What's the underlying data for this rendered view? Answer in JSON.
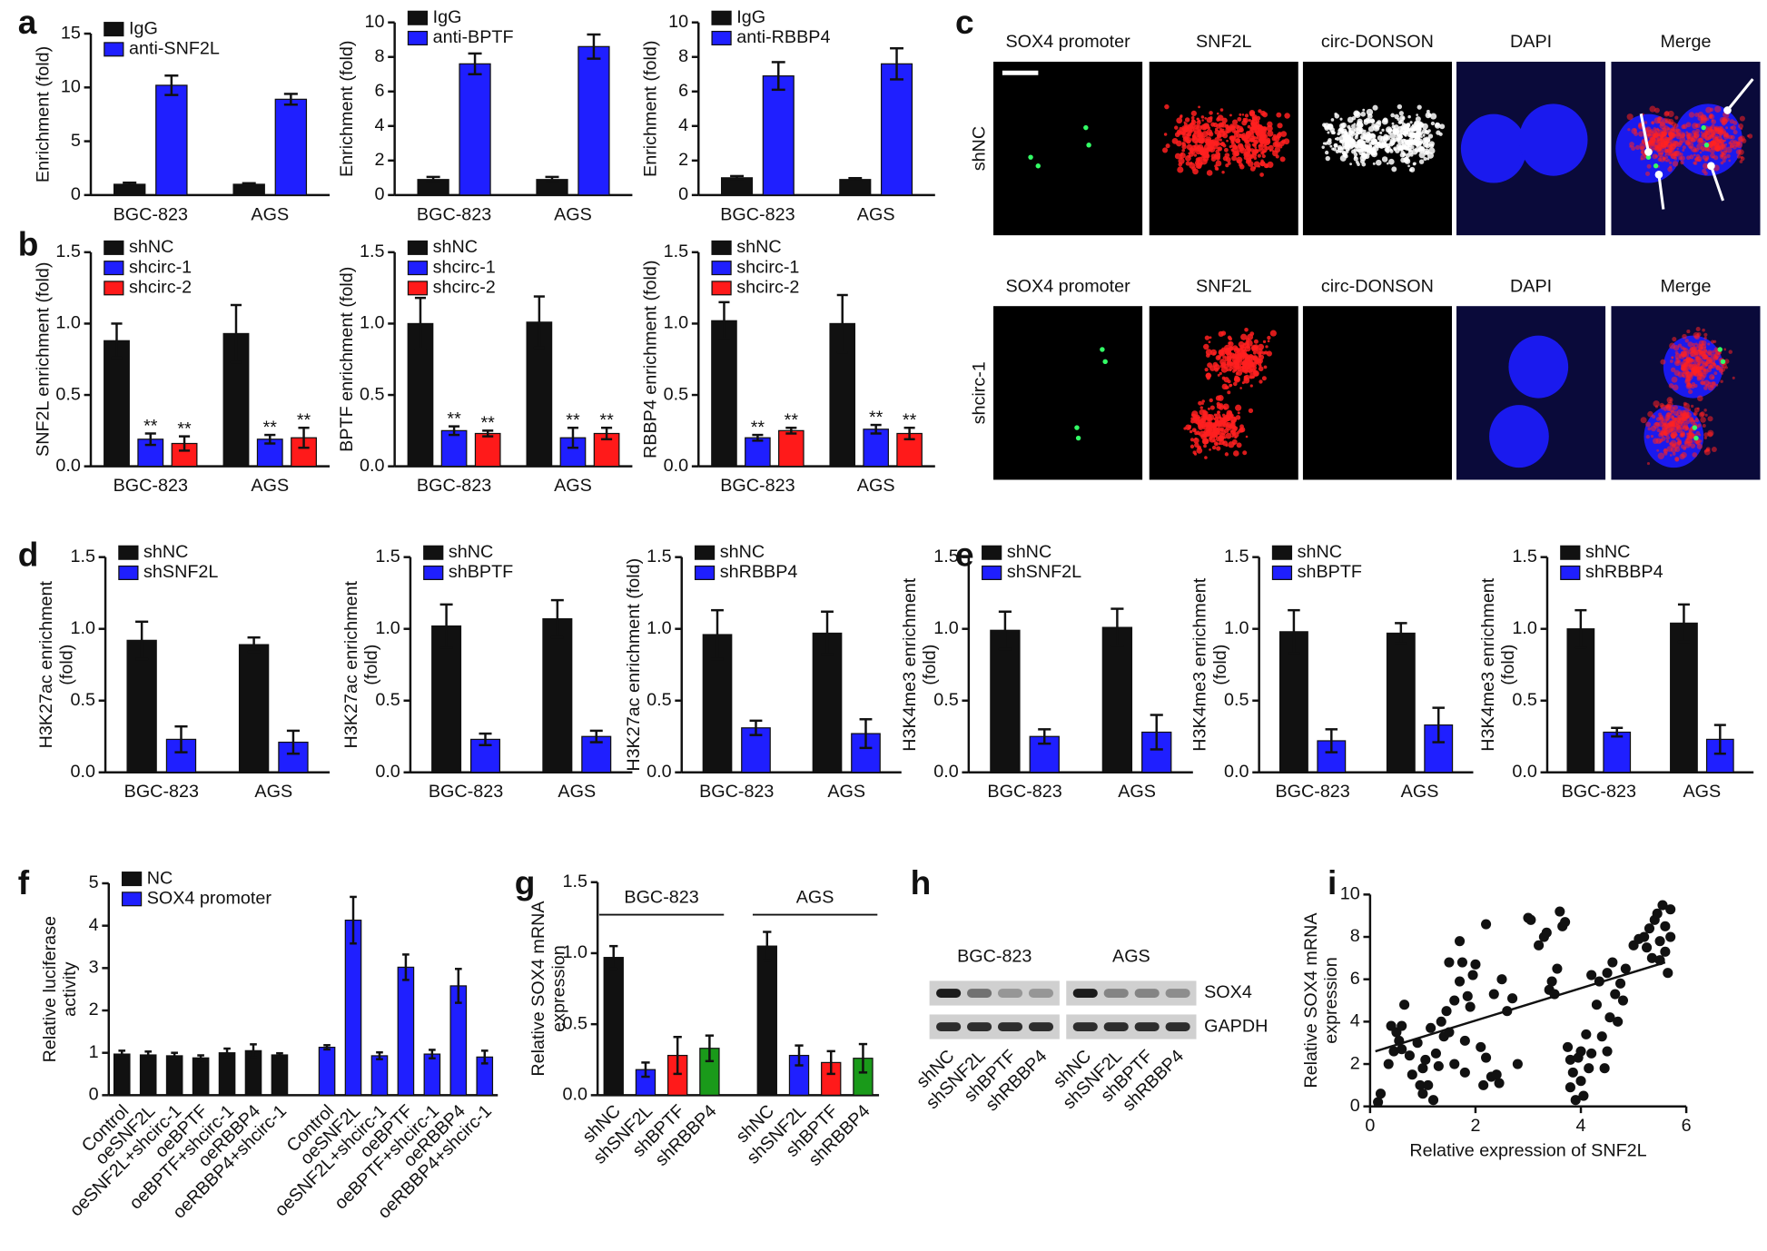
{
  "panel_labels": [
    "a",
    "b",
    "c",
    "d",
    "e",
    "f",
    "g",
    "h",
    "i"
  ],
  "microscopy": {
    "columns": [
      "SOX4 promoter",
      "SNF2L",
      "circ-DONSON",
      "DAPI",
      "Merge"
    ],
    "rows": [
      "shNC",
      "shcirc-1"
    ]
  },
  "blot": {
    "groups": [
      "BGC-823",
      "AGS"
    ],
    "bands": [
      "SOX4",
      "GAPDH"
    ],
    "lanes": [
      "shNC",
      "shSNF2L",
      "shBPTF",
      "shRBBP4"
    ]
  },
  "chart_data": [
    {
      "type": "bar",
      "ylabel": "Enrichment (fold)",
      "categories": [
        "BGC-823",
        "AGS"
      ],
      "ylim": [
        0,
        15
      ],
      "yticks": [
        0,
        5,
        10,
        15
      ],
      "legend": "upper left",
      "series": [
        {
          "name": "IgG",
          "color": "#111111",
          "values": [
            1.0,
            1.0
          ],
          "errors": [
            0.15,
            0.1
          ]
        },
        {
          "name": "anti-SNF2L",
          "color": "#1f1fff",
          "values": [
            10.2,
            8.9
          ],
          "errors": [
            0.9,
            0.5
          ]
        }
      ]
    },
    {
      "type": "bar",
      "ylabel": "Enrichment (fold)",
      "categories": [
        "BGC-823",
        "AGS"
      ],
      "ylim": [
        0,
        10
      ],
      "yticks": [
        0,
        2,
        4,
        6,
        8,
        10
      ],
      "legend": "upper left",
      "series": [
        {
          "name": "IgG",
          "color": "#111111",
          "values": [
            0.9,
            0.9
          ],
          "errors": [
            0.15,
            0.15
          ]
        },
        {
          "name": "anti-BPTF",
          "color": "#1f1fff",
          "values": [
            7.6,
            8.6
          ],
          "errors": [
            0.6,
            0.7
          ]
        }
      ]
    },
    {
      "type": "bar",
      "ylabel": "Enrichment (fold)",
      "categories": [
        "BGC-823",
        "AGS"
      ],
      "ylim": [
        0,
        10
      ],
      "yticks": [
        0,
        2,
        4,
        6,
        8,
        10
      ],
      "legend": "upper left",
      "series": [
        {
          "name": "IgG",
          "color": "#111111",
          "values": [
            1.0,
            0.9
          ],
          "errors": [
            0.1,
            0.08
          ]
        },
        {
          "name": "anti-RBBP4",
          "color": "#1f1fff",
          "values": [
            6.9,
            7.6
          ],
          "errors": [
            0.8,
            0.9
          ]
        }
      ]
    },
    {
      "type": "bar",
      "ylabel": "SNF2L enrichment (fold)",
      "categories": [
        "BGC-823",
        "AGS"
      ],
      "ylim": [
        0,
        1.5
      ],
      "yticks": [
        {
          "value": 0,
          "label": "0.0"
        },
        0.5,
        {
          "value": 1,
          "label": "1.0"
        },
        1.5
      ],
      "legend": "upper left",
      "series": [
        {
          "name": "shNC",
          "color": "#111111",
          "values": [
            0.88,
            0.93
          ],
          "errors": [
            0.12,
            0.2
          ]
        },
        {
          "name": "shcirc-1",
          "color": "#1f1fff",
          "values": [
            0.19,
            0.19
          ],
          "errors": [
            0.04,
            0.03
          ],
          "annotations": [
            "**",
            "**"
          ]
        },
        {
          "name": "shcirc-2",
          "color": "#ff1a1a",
          "values": [
            0.16,
            0.2
          ],
          "errors": [
            0.05,
            0.07
          ],
          "annotations": [
            "**",
            "**"
          ]
        }
      ]
    },
    {
      "type": "bar",
      "ylabel": "BPTF enrichment (fold)",
      "categories": [
        "BGC-823",
        "AGS"
      ],
      "ylim": [
        0,
        1.5
      ],
      "yticks": [
        {
          "value": 0,
          "label": "0.0"
        },
        0.5,
        {
          "value": 1,
          "label": "1.0"
        },
        1.5
      ],
      "legend": "upper left",
      "series": [
        {
          "name": "shNC",
          "color": "#111111",
          "values": [
            1.0,
            1.01
          ],
          "errors": [
            0.18,
            0.18
          ]
        },
        {
          "name": "shcirc-1",
          "color": "#1f1fff",
          "values": [
            0.25,
            0.2
          ],
          "errors": [
            0.03,
            0.07
          ],
          "annotations": [
            "**",
            "**"
          ]
        },
        {
          "name": "shcirc-2",
          "color": "#ff1a1a",
          "values": [
            0.23,
            0.23
          ],
          "errors": [
            0.02,
            0.04
          ],
          "annotations": [
            "**",
            "**"
          ]
        }
      ]
    },
    {
      "type": "bar",
      "ylabel": "RBBP4 enrichment (fold)",
      "categories": [
        "BGC-823",
        "AGS"
      ],
      "ylim": [
        0,
        1.5
      ],
      "yticks": [
        {
          "value": 0,
          "label": "0.0"
        },
        0.5,
        {
          "value": 1,
          "label": "1.0"
        },
        1.5
      ],
      "legend": "upper left",
      "series": [
        {
          "name": "shNC",
          "color": "#111111",
          "values": [
            1.02,
            1.0
          ],
          "errors": [
            0.13,
            0.2
          ]
        },
        {
          "name": "shcirc-1",
          "color": "#1f1fff",
          "values": [
            0.2,
            0.26
          ],
          "errors": [
            0.02,
            0.03
          ],
          "annotations": [
            "**",
            "**"
          ]
        },
        {
          "name": "shcirc-2",
          "color": "#ff1a1a",
          "values": [
            0.25,
            0.23
          ],
          "errors": [
            0.02,
            0.04
          ],
          "annotations": [
            "**",
            "**"
          ]
        }
      ]
    },
    {
      "type": "bar",
      "ylabel": [
        "H3K27ac enrichment",
        "(fold)"
      ],
      "categories": [
        "BGC-823",
        "AGS"
      ],
      "ylim": [
        0,
        1.5
      ],
      "yticks": [
        {
          "value": 0,
          "label": "0.0"
        },
        0.5,
        {
          "value": 1,
          "label": "1.0"
        },
        1.5
      ],
      "legend": "upper left",
      "series": [
        {
          "name": "shNC",
          "color": "#111111",
          "values": [
            0.92,
            0.89
          ],
          "errors": [
            0.13,
            0.05
          ]
        },
        {
          "name": "shSNF2L",
          "color": "#1f1fff",
          "values": [
            0.23,
            0.21
          ],
          "errors": [
            0.09,
            0.08
          ]
        }
      ]
    },
    {
      "type": "bar",
      "ylabel": [
        "H3K27ac enrichment",
        "(fold)"
      ],
      "categories": [
        "BGC-823",
        "AGS"
      ],
      "ylim": [
        0,
        1.5
      ],
      "yticks": [
        {
          "value": 0,
          "label": "0.0"
        },
        0.5,
        {
          "value": 1,
          "label": "1.0"
        },
        1.5
      ],
      "legend": "upper left",
      "series": [
        {
          "name": "shNC",
          "color": "#111111",
          "values": [
            1.02,
            1.07
          ],
          "errors": [
            0.15,
            0.13
          ]
        },
        {
          "name": "shBPTF",
          "color": "#1f1fff",
          "values": [
            0.23,
            0.25
          ],
          "errors": [
            0.04,
            0.04
          ]
        }
      ]
    },
    {
      "type": "bar",
      "ylabel": "H3K27ac enrichment (fold)",
      "categories": [
        "BGC-823",
        "AGS"
      ],
      "ylim": [
        0,
        1.5
      ],
      "yticks": [
        {
          "value": 0,
          "label": "0.0"
        },
        0.5,
        {
          "value": 1,
          "label": "1.0"
        },
        1.5
      ],
      "legend": "upper left",
      "series": [
        {
          "name": "shNC",
          "color": "#111111",
          "values": [
            0.96,
            0.97
          ],
          "errors": [
            0.17,
            0.15
          ]
        },
        {
          "name": "shRBBP4",
          "color": "#1f1fff",
          "values": [
            0.31,
            0.27
          ],
          "errors": [
            0.05,
            0.1
          ]
        }
      ]
    },
    {
      "type": "bar",
      "ylabel": [
        "H3K4me3 enrichment",
        "(fold)"
      ],
      "categories": [
        "BGC-823",
        "AGS"
      ],
      "ylim": [
        0,
        1.5
      ],
      "yticks": [
        {
          "value": 0,
          "label": "0.0"
        },
        0.5,
        {
          "value": 1,
          "label": "1.0"
        },
        1.5
      ],
      "legend": "upper left",
      "series": [
        {
          "name": "shNC",
          "color": "#111111",
          "values": [
            0.99,
            1.01
          ],
          "errors": [
            0.13,
            0.13
          ]
        },
        {
          "name": "shSNF2L",
          "color": "#1f1fff",
          "values": [
            0.25,
            0.28
          ],
          "errors": [
            0.05,
            0.12
          ]
        }
      ]
    },
    {
      "type": "bar",
      "ylabel": [
        "H3K4me3 enrichment",
        "(fold)"
      ],
      "categories": [
        "BGC-823",
        "AGS"
      ],
      "ylim": [
        0,
        1.5
      ],
      "yticks": [
        {
          "value": 0,
          "label": "0.0"
        },
        0.5,
        {
          "value": 1,
          "label": "1.0"
        },
        1.5
      ],
      "legend": "upper left",
      "series": [
        {
          "name": "shNC",
          "color": "#111111",
          "values": [
            0.98,
            0.97
          ],
          "errors": [
            0.15,
            0.07
          ]
        },
        {
          "name": "shBPTF",
          "color": "#1f1fff",
          "values": [
            0.22,
            0.33
          ],
          "errors": [
            0.08,
            0.12
          ]
        }
      ]
    },
    {
      "type": "bar",
      "ylabel": [
        "H3K4me3 enrichment",
        "(fold)"
      ],
      "categories": [
        "BGC-823",
        "AGS"
      ],
      "ylim": [
        0,
        1.5
      ],
      "yticks": [
        {
          "value": 0,
          "label": "0.0"
        },
        0.5,
        {
          "value": 1,
          "label": "1.0"
        },
        1.5
      ],
      "legend": "upper left",
      "series": [
        {
          "name": "shNC",
          "color": "#111111",
          "values": [
            1.0,
            1.04
          ],
          "errors": [
            0.13,
            0.13
          ]
        },
        {
          "name": "shRBBP4",
          "color": "#1f1fff",
          "values": [
            0.28,
            0.23
          ],
          "errors": [
            0.03,
            0.1
          ]
        }
      ]
    },
    {
      "type": "bar",
      "ylabel": [
        "Relative luciferase",
        "activity"
      ],
      "xtick_rotation": 45,
      "legend": "upper left",
      "ylim": [
        0,
        5
      ],
      "yticks": [
        0,
        1,
        2,
        3,
        4,
        5
      ],
      "categories": [
        "Control",
        "oeSNF2L",
        "oeSNF2L+shcirc-1",
        "oeBPTF",
        "oeBPTF+shcirc-1",
        "oeRBBP4",
        "oeRBBP4+shcirc-1",
        "Control",
        "oeSNF2L",
        "oeSNF2L+shcirc-1",
        "oeBPTF",
        "oeBPTF+shcirc-1",
        "oeRBBP4",
        "oeRBBP4+shcirc-1"
      ],
      "series": [
        {
          "name": "NC",
          "color": "#111111",
          "values": [
            0.97,
            0.95,
            0.93,
            0.88,
            1.0,
            1.05,
            0.95,
            null,
            null,
            null,
            null,
            null,
            null,
            null
          ],
          "errors": [
            0.08,
            0.08,
            0.07,
            0.06,
            0.1,
            0.15,
            0.04,
            null,
            null,
            null,
            null,
            null,
            null,
            null
          ]
        },
        {
          "name": "SOX4 promoter",
          "color": "#1f1fff",
          "values": [
            null,
            null,
            null,
            null,
            null,
            null,
            null,
            1.13,
            4.13,
            0.93,
            3.02,
            0.97,
            2.58,
            0.9
          ],
          "errors": [
            null,
            null,
            null,
            null,
            null,
            null,
            null,
            0.05,
            0.55,
            0.08,
            0.3,
            0.1,
            0.4,
            0.15
          ]
        }
      ]
    },
    {
      "type": "bar",
      "ylabel": [
        "Relative SOX4 mRNA",
        "expression"
      ],
      "xtick_rotation": 45,
      "ylim": [
        0,
        1.5
      ],
      "yticks": [
        {
          "value": 0,
          "label": "0.0"
        },
        0.5,
        {
          "value": 1,
          "label": "1.0"
        },
        1.5
      ],
      "groups": [
        "BGC-823",
        "AGS"
      ],
      "categories": [
        "shNC",
        "shSNF2L",
        "shBPTF",
        "shRBBP4",
        "shNC",
        "shSNF2L",
        "shBPTF",
        "shRBBP4"
      ],
      "colors": [
        "#111111",
        "#1f1fff",
        "#ff1a1a",
        "#1a9a1a",
        "#111111",
        "#1f1fff",
        "#ff1a1a",
        "#1a9a1a"
      ],
      "values": [
        0.97,
        0.18,
        0.28,
        0.33,
        1.05,
        0.28,
        0.23,
        0.26
      ],
      "errors": [
        0.08,
        0.05,
        0.13,
        0.09,
        0.1,
        0.07,
        0.08,
        0.1
      ]
    },
    {
      "type": "scatter",
      "xlabel": "Relative expression of SNF2L",
      "ylabel": [
        "Relative SOX4 mRNA",
        "expression"
      ],
      "color": "#111111",
      "xlim": [
        0,
        6
      ],
      "xticks": [
        0,
        2,
        4,
        6
      ],
      "ylim": [
        0,
        10
      ],
      "yticks": [
        0,
        2,
        4,
        6,
        8,
        10
      ],
      "x": [
        0.15,
        0.2,
        0.35,
        0.4,
        0.45,
        0.5,
        0.55,
        0.6,
        0.6,
        0.65,
        0.75,
        0.8,
        0.9,
        0.95,
        1.0,
        1.0,
        1.05,
        1.1,
        1.15,
        1.2,
        1.25,
        1.3,
        1.35,
        1.4,
        1.45,
        1.5,
        1.5,
        1.6,
        1.6,
        1.7,
        1.7,
        1.75,
        1.8,
        1.8,
        1.85,
        1.9,
        1.95,
        2.0,
        2.1,
        2.15,
        2.2,
        2.2,
        2.3,
        2.35,
        2.4,
        2.45,
        2.5,
        2.6,
        2.7,
        2.8,
        3.0,
        3.05,
        3.2,
        3.3,
        3.35,
        3.4,
        3.45,
        3.5,
        3.55,
        3.6,
        3.65,
        3.7,
        3.75,
        3.8,
        3.8,
        3.85,
        3.9,
        3.95,
        4.0,
        4.0,
        4.05,
        4.1,
        4.15,
        4.2,
        4.2,
        4.3,
        4.35,
        4.4,
        4.45,
        4.5,
        4.5,
        4.55,
        4.6,
        4.65,
        4.7,
        4.75,
        4.8,
        4.85,
        5.0,
        5.1,
        5.2,
        5.25,
        5.3,
        5.35,
        5.4,
        5.45,
        5.5,
        5.5,
        5.55,
        5.6,
        5.6,
        5.65,
        5.7,
        5.7
      ],
      "y": [
        0.2,
        0.6,
        2.0,
        3.8,
        2.6,
        3.5,
        3.1,
        3.8,
        2.7,
        4.8,
        2.4,
        1.5,
        3.0,
        1.0,
        0.6,
        1.8,
        2.2,
        1.0,
        3.7,
        0.3,
        2.5,
        1.9,
        4.0,
        3.3,
        4.5,
        3.5,
        6.8,
        5.0,
        2.0,
        7.8,
        5.9,
        6.8,
        3.1,
        1.6,
        5.2,
        4.7,
        6.2,
        6.7,
        2.8,
        1.0,
        8.6,
        2.3,
        1.4,
        5.3,
        1.5,
        1.1,
        6.0,
        4.5,
        5.1,
        2.0,
        8.9,
        8.8,
        7.6,
        8.0,
        8.2,
        5.5,
        5.9,
        5.3,
        6.5,
        9.2,
        8.5,
        8.7,
        2.8,
        0.9,
        2.2,
        1.6,
        0.3,
        2.3,
        1.2,
        2.6,
        0.5,
        3.4,
        1.8,
        2.5,
        6.2,
        4.8,
        5.9,
        3.3,
        1.8,
        2.6,
        6.3,
        4.2,
        6.8,
        5.3,
        4.0,
        5.8,
        5.0,
        6.5,
        7.6,
        7.9,
        8.0,
        7.5,
        8.4,
        7.0,
        8.8,
        9.1,
        7.8,
        6.9,
        9.5,
        8.5,
        7.3,
        6.3,
        9.3,
        8.0
      ],
      "trendline": {
        "x": [
          0.1,
          5.6
        ],
        "y": [
          2.6,
          6.8
        ]
      }
    }
  ]
}
